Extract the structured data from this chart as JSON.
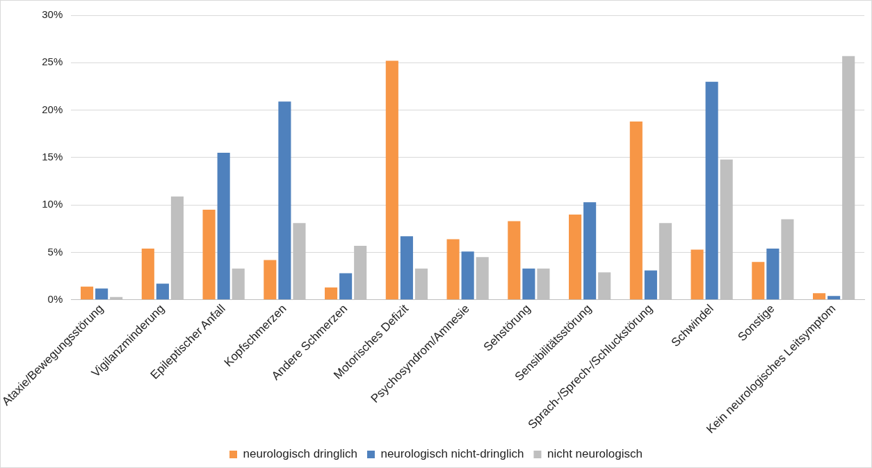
{
  "chart_data": {
    "type": "bar",
    "categories": [
      "Ataxie/Bewegungsstörung",
      "Vigilanzminderung",
      "Epileptischer Anfall",
      "Kopfschmerzen",
      "Andere Schmerzen",
      "Motorisches Defizit",
      "Psychosyndrom/Amnesie",
      "Sehstörung",
      "Sensibilitätsstörung",
      "Sprach-/Sprech-/Schluckstörung",
      "Schwindel",
      "Sonstige",
      "Kein neurologisches Leitsymptom"
    ],
    "series": [
      {
        "name": "neurologisch dringlich",
        "color": "#f79646",
        "values": [
          1.4,
          5.4,
          9.5,
          4.2,
          1.3,
          25.2,
          6.4,
          8.3,
          9.0,
          18.8,
          5.3,
          4.0,
          0.7
        ]
      },
      {
        "name": "neurologisch nicht-dringlich",
        "color": "#4f81bd",
        "values": [
          1.2,
          1.7,
          15.5,
          20.9,
          2.8,
          6.7,
          5.1,
          3.3,
          10.3,
          3.1,
          23.0,
          5.4,
          0.4
        ]
      },
      {
        "name": "nicht neurologisch",
        "color": "#bfbfbf",
        "values": [
          0.3,
          10.9,
          3.3,
          8.1,
          5.7,
          3.3,
          4.5,
          3.3,
          2.9,
          8.1,
          14.8,
          8.5,
          25.7
        ]
      }
    ],
    "ylim": [
      0,
      30
    ],
    "yticks": [
      {
        "value": 0,
        "label": "0%"
      },
      {
        "value": 5,
        "label": "5%"
      },
      {
        "value": 10,
        "label": "10%"
      },
      {
        "value": 15,
        "label": "15%"
      },
      {
        "value": 20,
        "label": "20%"
      },
      {
        "value": 25,
        "label": "25%"
      },
      {
        "value": 30,
        "label": "30%"
      }
    ],
    "grid": "y",
    "legend": "bottom"
  }
}
